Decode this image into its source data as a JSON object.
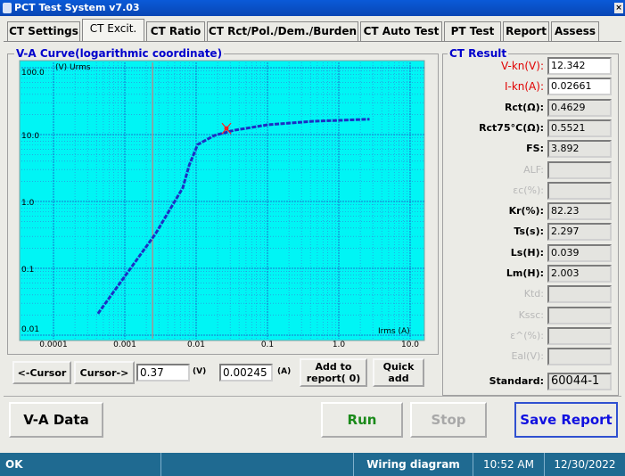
{
  "window_title": "PCT Test System v7.03",
  "tabs": [
    {
      "label": "CT Settings"
    },
    {
      "label": "CT Excit.",
      "active": true
    },
    {
      "label": "CT Ratio"
    },
    {
      "label": "CT Rct/Pol./Dem./Burden"
    },
    {
      "label": "CT Auto Test"
    },
    {
      "label": "PT Test"
    },
    {
      "label": "Report"
    },
    {
      "label": "Assess"
    }
  ],
  "chart_data": {
    "type": "line",
    "title": "V-A Curve(logarithmic coordinate)",
    "x_label": "Irms (A)",
    "y_label": "(V) Urms",
    "xscale": "log",
    "yscale": "log",
    "grid": true,
    "xlim": [
      0.0001,
      10
    ],
    "ylim": [
      0.01,
      100
    ],
    "xticks": [
      0.0001,
      0.001,
      0.01,
      0.1,
      {
        "value": 1,
        "label": "1.0"
      },
      {
        "value": 10,
        "label": "10.0"
      }
    ],
    "yticks": [
      0.01,
      0.1,
      {
        "value": 1,
        "label": "1.0"
      },
      {
        "value": 10,
        "label": "10.0"
      },
      {
        "value": 100,
        "label": "100.0"
      }
    ],
    "series": [
      {
        "color": "#1c2fc4",
        "x": [
          0.00042,
          0.0027,
          0.0065,
          0.008,
          0.0105,
          0.018,
          0.034,
          0.1,
          0.42,
          2.7
        ],
        "values": [
          0.021,
          0.33,
          1.6,
          3.5,
          7.1,
          9.7,
          11.6,
          14,
          15.8,
          17
        ]
      }
    ]
  },
  "cursor": {
    "prev": "<-Cursor",
    "next": "Cursor->",
    "voltage": 0.37,
    "voltage_unit": "(V)",
    "current": 0.00245,
    "current_unit": "(A)",
    "add_to_report": [
      "Add to",
      "report( 0)"
    ],
    "quick_add": [
      "Quick",
      "add"
    ]
  },
  "results_title": "CT Result",
  "results": [
    {
      "label": "V-kn(V):",
      "value": 12.342,
      "editable": true
    },
    {
      "label": "I-kn(A):",
      "value": 0.02661,
      "editable": true
    },
    {
      "label": "Rct(Ω):",
      "value": 0.4629
    },
    {
      "label": "Rct75°C(Ω):",
      "value": 0.5521
    },
    {
      "label": "FS:",
      "value": 3.892
    },
    {
      "label": "ALF:",
      "enabled": false
    },
    {
      "label": "εc(%):",
      "enabled": false
    },
    {
      "label": "Kr(%):",
      "value": 82.23
    },
    {
      "label": "Ts(s):",
      "value": 2.297
    },
    {
      "label": "Ls(H):",
      "value": 0.039
    },
    {
      "label": "Lm(H):",
      "value": 2.003
    },
    {
      "label": "Ktd:",
      "enabled": false
    },
    {
      "label": "Kssc:",
      "enabled": false
    },
    {
      "label": "ε^(%):",
      "enabled": false
    },
    {
      "label": "Eal(V):",
      "enabled": false
    },
    {
      "label": "Standard:",
      "value": "60044-1"
    }
  ],
  "buttons": {
    "va_data": "V-A Data",
    "run": "Run",
    "stop": "Stop",
    "save_report": "Save Report"
  },
  "status_bar": [
    "OK",
    "Wiring diagram",
    "10:52 AM",
    "12/30/2022"
  ]
}
